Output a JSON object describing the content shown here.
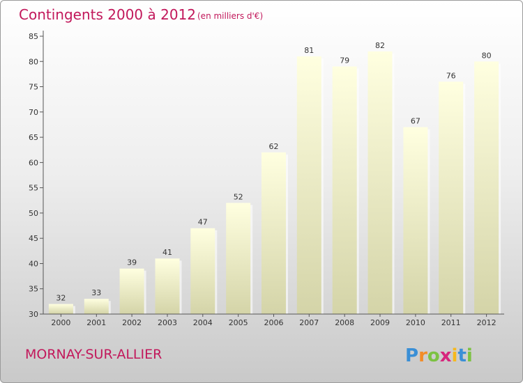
{
  "chart_data": {
    "type": "bar",
    "title": "Contingents 2000 à 2012",
    "subtitle": "(en milliers d'€)",
    "categories": [
      "2000",
      "2001",
      "2002",
      "2003",
      "2004",
      "2005",
      "2006",
      "2007",
      "2008",
      "2009",
      "2010",
      "2011",
      "2012"
    ],
    "values": [
      32,
      33,
      39,
      41,
      47,
      52,
      62,
      81,
      79,
      82,
      67,
      76,
      80
    ],
    "ylim": [
      30,
      85
    ],
    "yticks": [
      30,
      35,
      40,
      45,
      50,
      55,
      60,
      65,
      70,
      75,
      80,
      85
    ],
    "xlabel": "",
    "ylabel": "",
    "grid": false,
    "legend": "none",
    "colors": {
      "bar_top": "#ffffe0",
      "bar_bottom": "#d4d4a8",
      "axis": "#555555",
      "title": "#c2185b"
    }
  },
  "footer": {
    "commune": "MORNAY-SUR-ALLIER",
    "brand_letters": [
      "P",
      "r",
      "o",
      "x",
      "i",
      "t",
      "i"
    ],
    "brand_colors": [
      "#3a8fd6",
      "#f28c28",
      "#7cc242",
      "#d7267d",
      "#f6b91e",
      "#3a8fd6",
      "#7cc242"
    ]
  }
}
